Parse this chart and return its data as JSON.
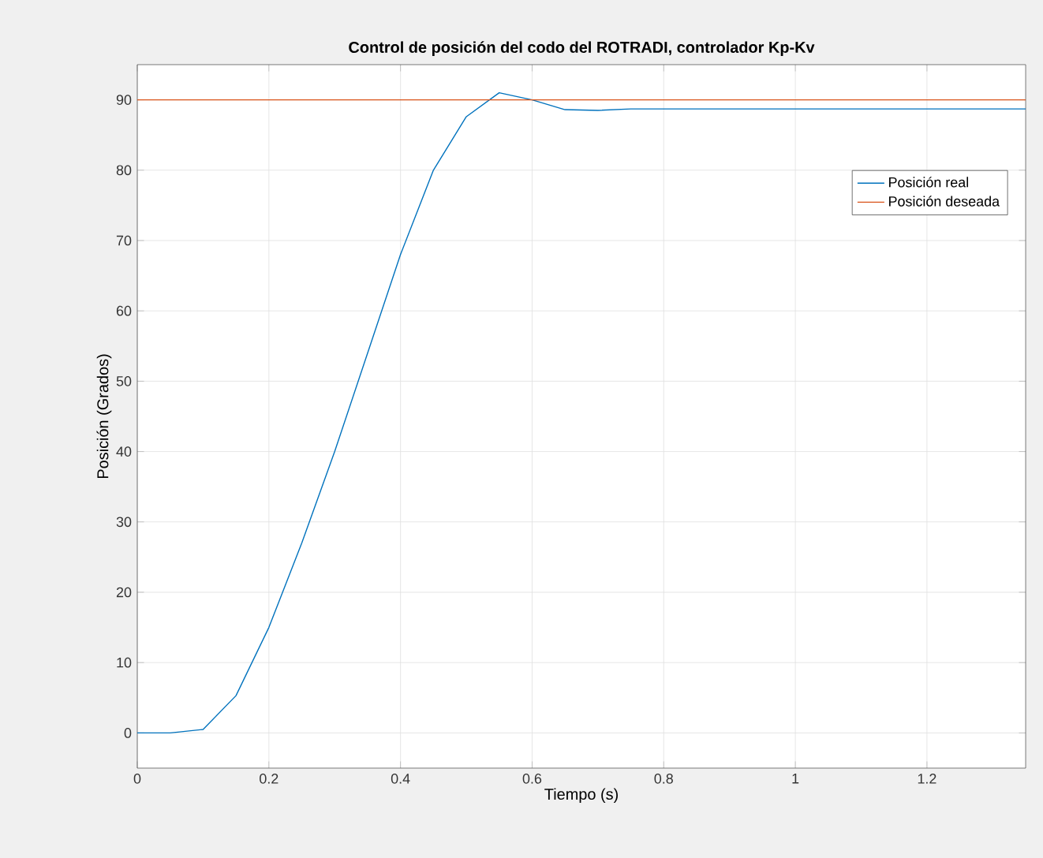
{
  "chart_data": {
    "type": "line",
    "title": "Control de posición del codo del ROTRADI, controlador Kp-Kv",
    "xlabel": "Tiempo (s)",
    "ylabel": "Posición (Grados)",
    "xlim": [
      0,
      1.35
    ],
    "ylim": [
      -5,
      95
    ],
    "xticks": [
      0,
      0.2,
      0.4,
      0.6,
      0.8,
      1,
      1.2
    ],
    "yticks": [
      0,
      10,
      20,
      30,
      40,
      50,
      60,
      70,
      80,
      90
    ],
    "grid": true,
    "legend": "top right",
    "line_style": "solid",
    "marker": "none",
    "series": [
      {
        "name": "Posición real",
        "color": "#0072bd",
        "x": [
          0,
          0.05,
          0.1,
          0.15,
          0.2,
          0.25,
          0.3,
          0.35,
          0.4,
          0.45,
          0.5,
          0.55,
          0.6,
          0.65,
          0.7,
          0.75,
          0.8,
          1.35
        ],
        "values": [
          0,
          0,
          0.5,
          5.3,
          15,
          27,
          40,
          54,
          68,
          80,
          87.6,
          91,
          90,
          88.6,
          88.5,
          88.7,
          88.7,
          88.7
        ]
      },
      {
        "name": "Posición deseada",
        "color": "#d95319",
        "x": [
          0,
          1.35
        ],
        "values": [
          90,
          90
        ]
      }
    ]
  }
}
